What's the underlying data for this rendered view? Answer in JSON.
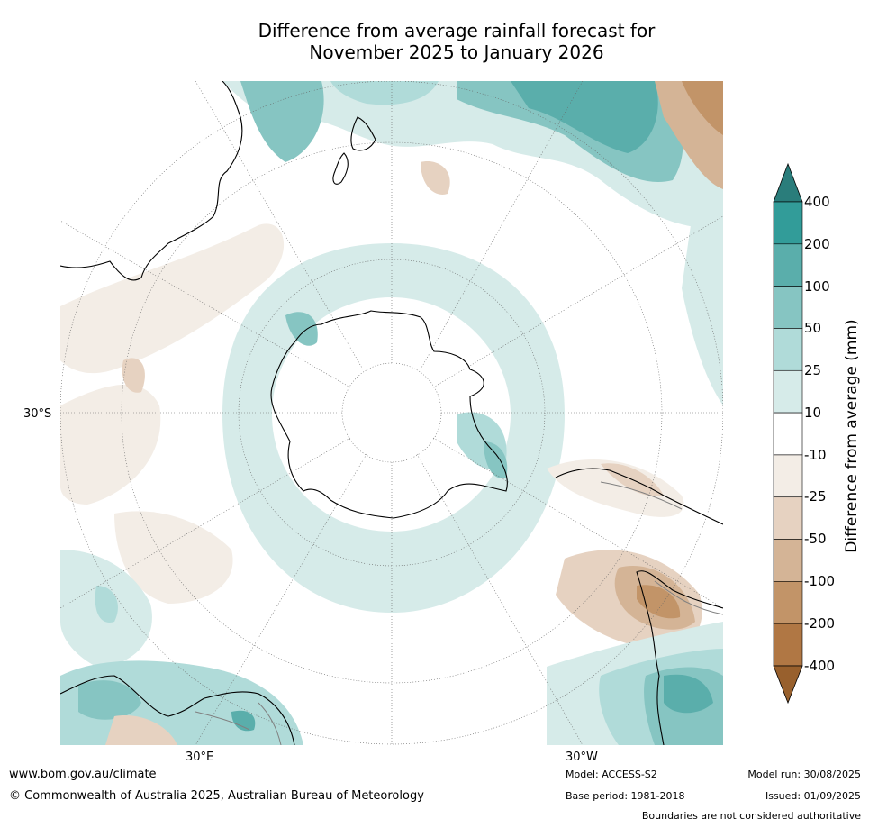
{
  "title": {
    "line1": "Difference from average rainfall forecast for",
    "line2": "November 2025 to January 2026"
  },
  "map": {
    "projection": "south-polar stereographic",
    "latitude_labels": [
      "30°S"
    ],
    "longitude_labels": [
      "30°E",
      "30°W"
    ],
    "colors": {
      "ocean_land_bg": "#ffffff",
      "coast": "#000000",
      "border": "#808080",
      "grid": "#555555"
    }
  },
  "colorbar": {
    "label": "Difference from average (mm)",
    "ticks": [
      "400",
      "200",
      "100",
      "50",
      "25",
      "10",
      "-10",
      "-25",
      "-50",
      "-100",
      "-200",
      "-400"
    ],
    "colors_top_to_bottom": [
      "#2a7d7b",
      "#329c99",
      "#5aaeab",
      "#86c5c2",
      "#b0dbd9",
      "#d6ebe9",
      "#ffffff",
      "#f3ede6",
      "#e6d2c1",
      "#d4b496",
      "#c29468",
      "#b07744",
      "#98602d"
    ]
  },
  "footer": {
    "website": "www.bom.gov.au/climate",
    "copyright": "© Commonwealth of Australia 2025, Australian Bureau of Meteorology",
    "model": "Model: ACCESS-S2",
    "base_period": "Base period: 1981-2018",
    "model_run": "Model run: 30/08/2025",
    "issued": "Issued: 01/09/2025",
    "disclaimer": "Boundaries are not considered authoritative"
  }
}
